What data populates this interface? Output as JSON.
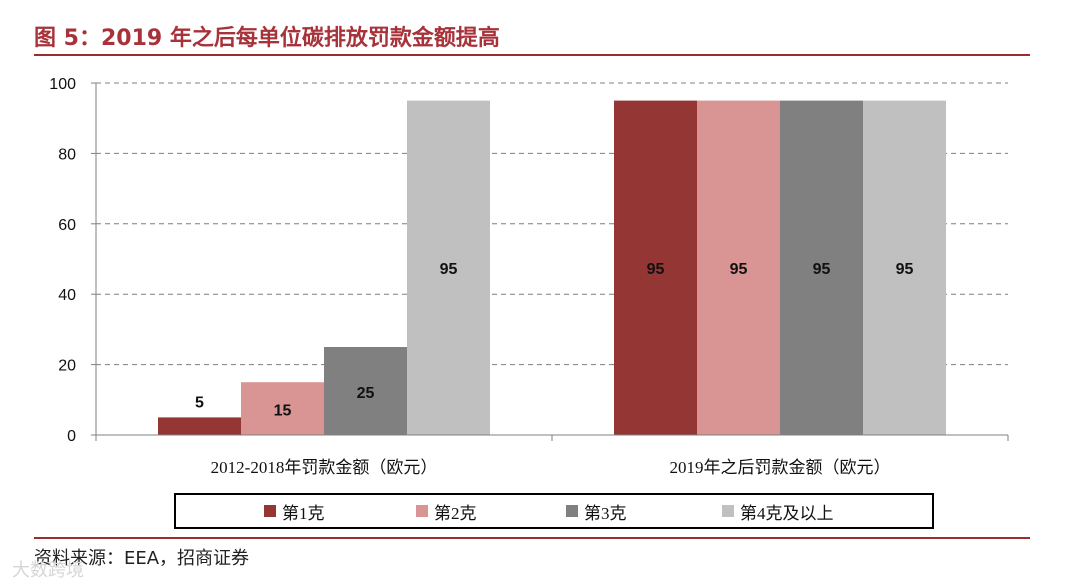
{
  "title": "图 5：2019 年之后每单位碳排放罚款金额提高",
  "source": "资料来源：EEA，招商证券",
  "watermark": "大数跨境",
  "chart_data": {
    "type": "bar",
    "categories": [
      "2012-2018年罚款金额（欧元）",
      "2019年之后罚款金额（欧元）"
    ],
    "series": [
      {
        "name": "第1克",
        "values": [
          5,
          95
        ],
        "color": "#943634"
      },
      {
        "name": "第2克",
        "values": [
          15,
          95
        ],
        "color": "#d99594"
      },
      {
        "name": "第3克",
        "values": [
          25,
          95
        ],
        "color": "#808080"
      },
      {
        "name": "第4克及以上",
        "values": [
          95,
          95
        ],
        "color": "#c0c0c0"
      }
    ],
    "ylim": [
      0,
      100
    ],
    "yticks": [
      0,
      20,
      40,
      60,
      80,
      100
    ],
    "grid": true,
    "legend_position": "bottom",
    "data_labels": true
  }
}
